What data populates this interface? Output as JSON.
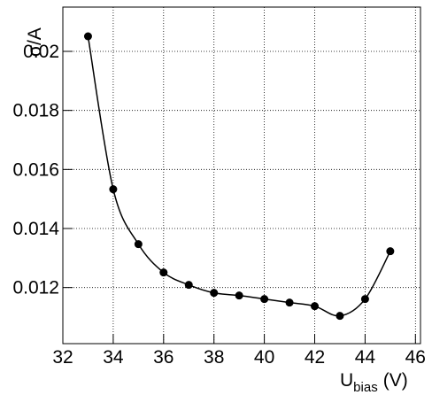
{
  "chart_data": {
    "type": "line",
    "ylabel": "σ/A",
    "xlabel": {
      "main": "U",
      "sub": "bias",
      "unit": "(V)"
    },
    "x": [
      33,
      34,
      35,
      36,
      37,
      38,
      39,
      40,
      41,
      42,
      43,
      44,
      45
    ],
    "series": [
      {
        "color": "#000000",
        "values": [
          0.02051,
          0.01533,
          0.01347,
          0.01251,
          0.01209,
          0.01182,
          0.01173,
          0.01161,
          0.01149,
          0.01137,
          0.01104,
          0.01161,
          0.01323
        ]
      }
    ],
    "xlim": [
      32,
      46.2
    ],
    "xticks": [
      32,
      34,
      36,
      38,
      40,
      42,
      44,
      46
    ],
    "ylim": [
      0.0101,
      0.0215
    ],
    "yticks": [
      0.012,
      0.014,
      0.016,
      0.018,
      0.02
    ],
    "grid": true,
    "smooth": true
  }
}
